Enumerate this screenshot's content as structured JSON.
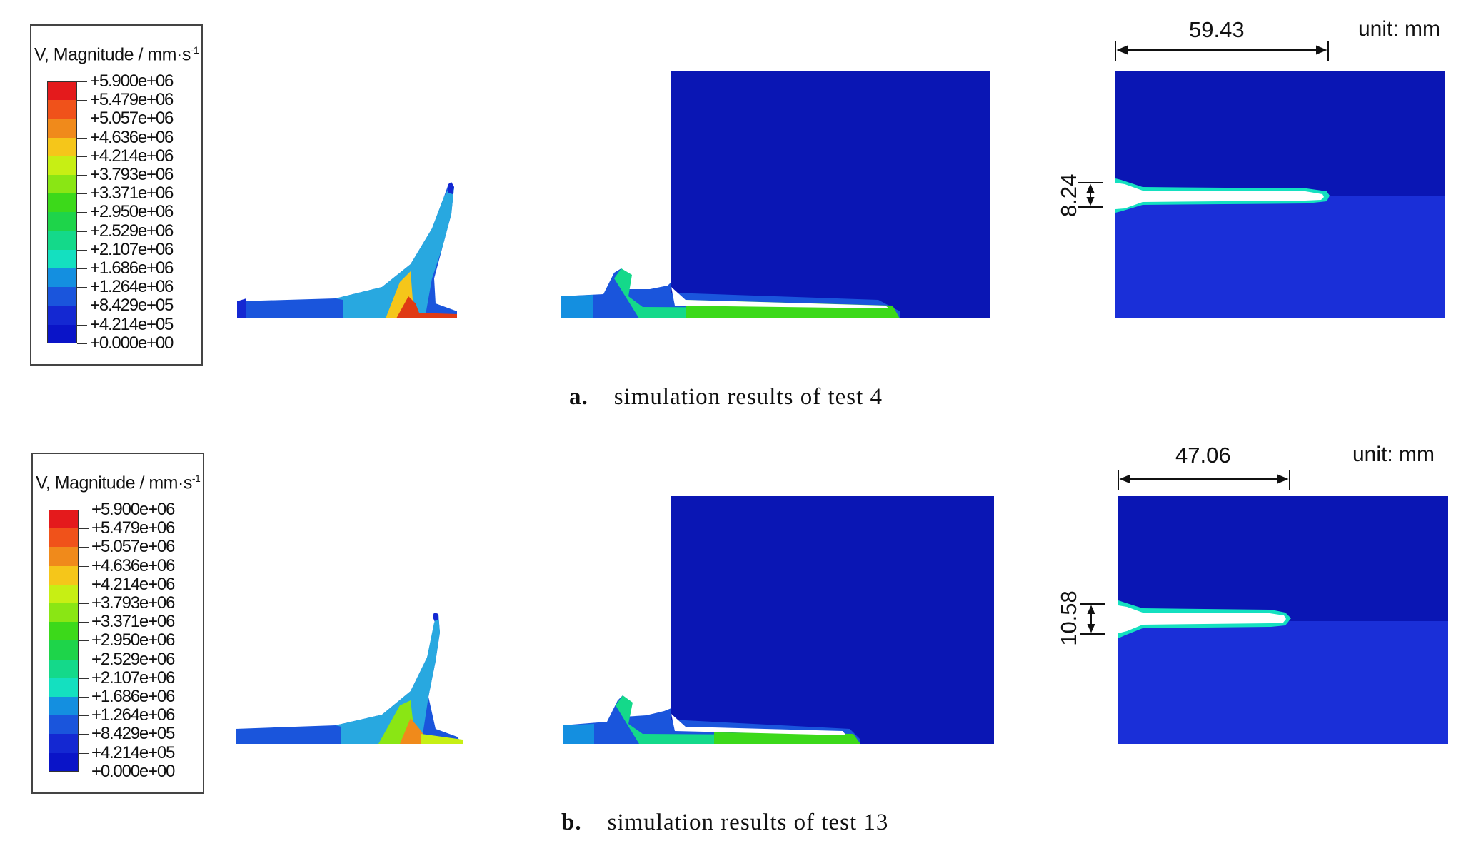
{
  "colors": {
    "legend": [
      "#e41a1c",
      "#f0521a",
      "#f08a1b",
      "#f5c61a",
      "#f7ef14",
      "#c7ef14",
      "#8ae614",
      "#3cd91a",
      "#1ed44a",
      "#14d98a",
      "#14e0c0",
      "#1ac7e6",
      "#148fe0",
      "#1a55dc",
      "#1428d2",
      "#0a14c8"
    ],
    "plate_dark": "#0a16b4",
    "plate_mid": "#1a2fd8",
    "rider": "#28a8e0",
    "hot": "#e03a14"
  },
  "panels": [
    {
      "id": "a",
      "legend": {
        "title": "V, Magnitude / mm·s",
        "title_sup": "-1",
        "ticks": [
          "+5.900e+06",
          "+5.479e+06",
          "+5.057e+06",
          "+4.636e+06",
          "+4.214e+06",
          "+3.793e+06",
          "+3.371e+06",
          "+2.950e+06",
          "+2.529e+06",
          "+2.107e+06",
          "+1.686e+06",
          "+1.264e+06",
          "+8.429e+05",
          "+4.214e+05",
          "+0.000e+00"
        ]
      },
      "dimension_width": "59.43",
      "dimension_gap": "8.24",
      "unit": "unit: mm",
      "caption_letter": "a.",
      "caption_text": "simulation results of test 4"
    },
    {
      "id": "b",
      "legend": {
        "title": "V, Magnitude / mm·s",
        "title_sup": "-1",
        "ticks": [
          "+5.900e+06",
          "+5.479e+06",
          "+5.057e+06",
          "+4.636e+06",
          "+4.214e+06",
          "+3.793e+06",
          "+3.371e+06",
          "+2.950e+06",
          "+2.529e+06",
          "+2.107e+06",
          "+1.686e+06",
          "+1.264e+06",
          "+8.429e+05",
          "+4.214e+05",
          "+0.000e+00"
        ]
      },
      "dimension_width": "47.06",
      "dimension_gap": "10.58",
      "unit": "unit: mm",
      "caption_letter": "b.",
      "caption_text": "simulation results of test 13"
    }
  ]
}
